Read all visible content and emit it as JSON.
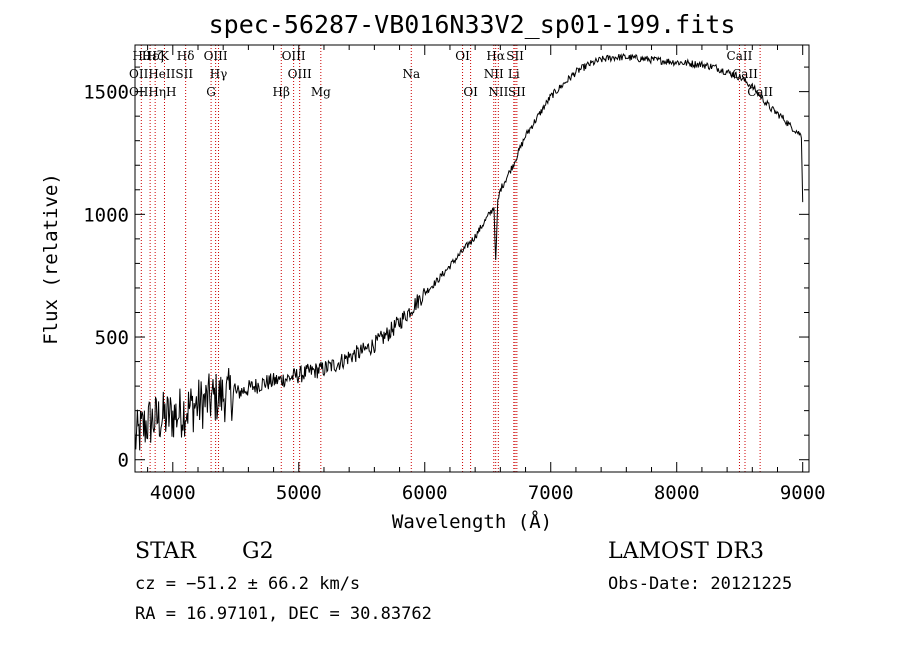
{
  "chart_data": {
    "type": "line",
    "title": "spec-56287-VB016N33V2_sp01-199.fits",
    "xlabel": "Wavelength (Å)",
    "ylabel": "Flux (relative)",
    "xlim": [
      3700,
      9050
    ],
    "ylim": [
      -50,
      1690
    ],
    "x_ticks": [
      {
        "value": 4000,
        "label": "4000"
      },
      {
        "value": 5000,
        "label": "5000"
      },
      {
        "value": 6000,
        "label": "6000"
      },
      {
        "value": 7000,
        "label": "7000"
      },
      {
        "value": 8000,
        "label": "8000"
      },
      {
        "value": 9000,
        "label": "9000"
      }
    ],
    "y_ticks": [
      {
        "value": 0,
        "label": "0"
      },
      {
        "value": 500,
        "label": "500"
      },
      {
        "value": 1000,
        "label": "1000"
      },
      {
        "value": 1500,
        "label": "1500"
      }
    ],
    "series": [
      {
        "name": "flux",
        "color": "#000000",
        "x": [
          3700,
          3750,
          3800,
          3850,
          3900,
          3950,
          4000,
          4050,
          4100,
          4150,
          4200,
          4250,
          4300,
          4350,
          4400,
          4450,
          4500,
          4600,
          4700,
          4800,
          4900,
          5000,
          5100,
          5200,
          5300,
          5400,
          5500,
          5600,
          5700,
          5800,
          5900,
          6000,
          6100,
          6200,
          6300,
          6400,
          6500,
          6550,
          6563,
          6580,
          6600,
          6650,
          6700,
          6750,
          6800,
          6900,
          7000,
          7100,
          7200,
          7300,
          7400,
          7500,
          7600,
          7700,
          7800,
          7900,
          8000,
          8100,
          8200,
          8300,
          8400,
          8500,
          8550,
          8600,
          8650,
          8700,
          8750,
          8800,
          8850,
          8900,
          8950,
          8990,
          9000
        ],
        "y": [
          80,
          120,
          150,
          160,
          170,
          175,
          180,
          190,
          205,
          215,
          225,
          235,
          245,
          255,
          260,
          265,
          270,
          290,
          310,
          320,
          330,
          345,
          360,
          370,
          390,
          420,
          440,
          470,
          510,
          560,
          620,
          680,
          730,
          790,
          850,
          910,
          990,
          1030,
          800,
          1050,
          1100,
          1150,
          1200,
          1260,
          1320,
          1400,
          1480,
          1530,
          1580,
          1610,
          1630,
          1640,
          1640,
          1635,
          1630,
          1625,
          1620,
          1615,
          1610,
          1600,
          1580,
          1560,
          1540,
          1520,
          1490,
          1460,
          1430,
          1410,
          1390,
          1360,
          1340,
          1320,
          1050
        ]
      }
    ],
    "spectral_lines": [
      {
        "wave": 3750,
        "row": 0,
        "label": "Hθ"
      },
      {
        "wave": 3820,
        "row": 0,
        "label": "Hε"
      },
      {
        "wave": 3860,
        "row": 0,
        "label": "Hζ"
      },
      {
        "wave": 3934,
        "row": 0,
        "label": "K"
      },
      {
        "wave": 4102,
        "row": 0,
        "label": "Hδ"
      },
      {
        "wave": 4340,
        "row": 0,
        "label": "OIII"
      },
      {
        "wave": 4363,
        "row": 1,
        "label": "Hγ"
      },
      {
        "wave": 4304,
        "row": 2,
        "label": "G"
      },
      {
        "wave": 4861,
        "row": 2,
        "label": "Hβ"
      },
      {
        "wave": 4959,
        "row": 0,
        "label": "OIII"
      },
      {
        "wave": 5007,
        "row": 1,
        "label": "OIII"
      },
      {
        "wave": 5175,
        "row": 2,
        "label": "Mg"
      },
      {
        "wave": 5893,
        "row": 1,
        "label": "Na"
      },
      {
        "wave": 6300,
        "row": 0,
        "label": "OI"
      },
      {
        "wave": 6364,
        "row": 2,
        "label": "OI"
      },
      {
        "wave": 6563,
        "row": 0,
        "label": "Hα"
      },
      {
        "wave": 6548,
        "row": 1,
        "label": "NII"
      },
      {
        "wave": 6584,
        "row": 2,
        "label": "NII"
      },
      {
        "wave": 6707,
        "row": 1,
        "label": "Li"
      },
      {
        "wave": 6717,
        "row": 0,
        "label": "SII"
      },
      {
        "wave": 6731,
        "row": 2,
        "label": "SII"
      },
      {
        "wave": 8498,
        "row": 0,
        "label": "CaII"
      },
      {
        "wave": 8542,
        "row": 1,
        "label": "CaII"
      },
      {
        "wave": 8662,
        "row": 2,
        "label": "CaII"
      }
    ],
    "left_labels": [
      {
        "row": 1,
        "label": "OIIHeIISII"
      },
      {
        "row": 2,
        "label": "OIIHηH"
      }
    ],
    "line_color": "#cc0000"
  },
  "info": {
    "object_class": "STAR",
    "subclass": "G2",
    "redshift_text": "cz = −51.2 ± 66.2 km/s",
    "coords_text": "RA =  16.97101, DEC =  30.83762",
    "survey": "LAMOST DR3",
    "obs_date": "Obs-Date: 20121225"
  }
}
